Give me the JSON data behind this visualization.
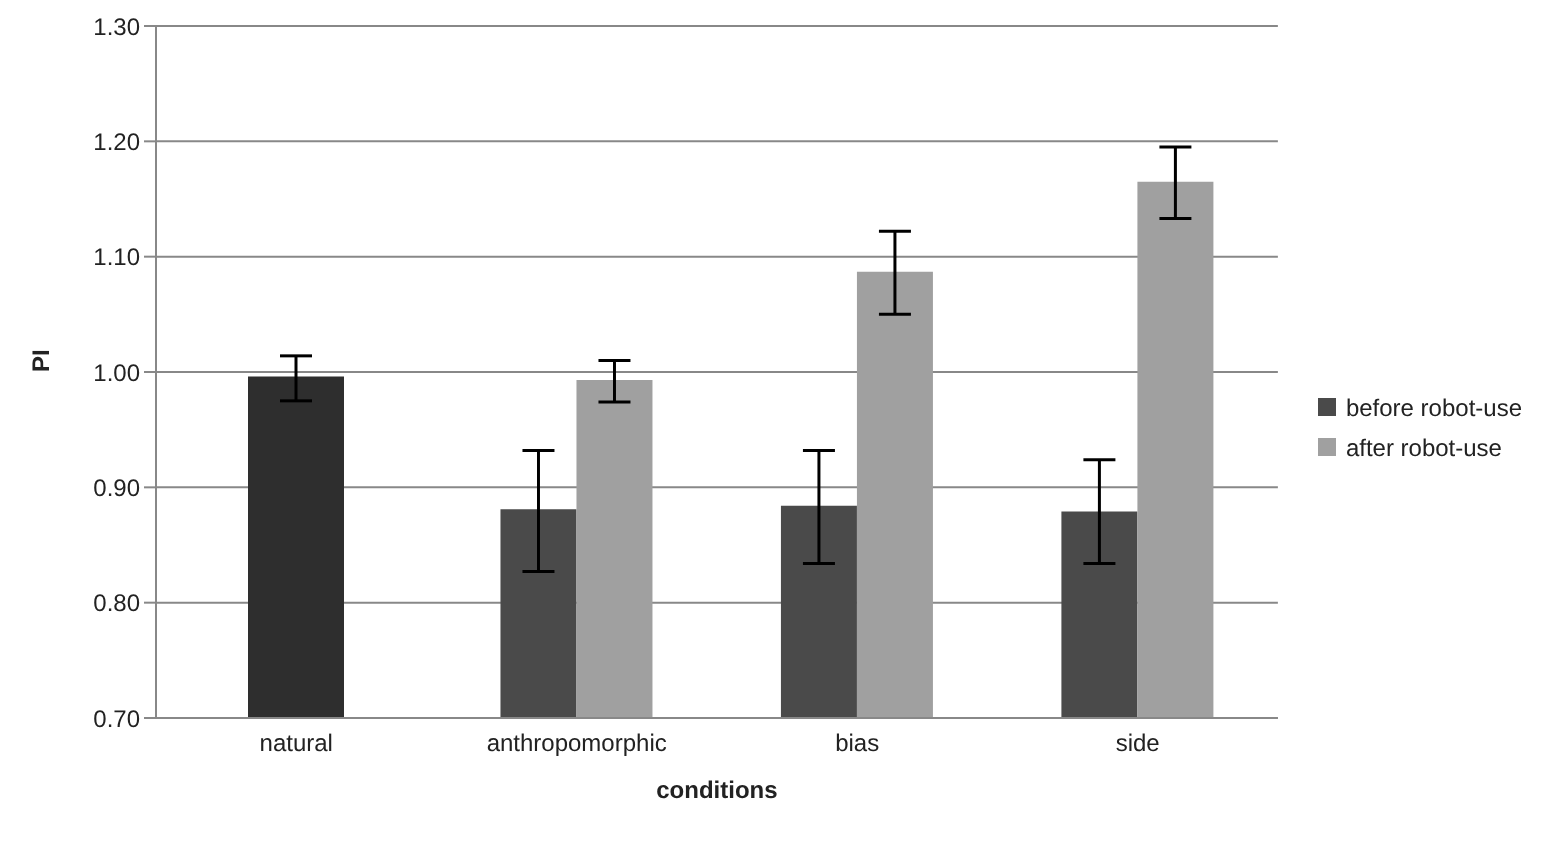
{
  "chart_data": {
    "type": "bar",
    "xlabel": "conditions",
    "ylabel": "PI",
    "categories": [
      "natural",
      "anthropomorphic",
      "bias",
      "side"
    ],
    "series": [
      {
        "color": "#2e2e2e",
        "values": [
          0.996,
          null,
          null,
          null
        ],
        "errors": [
          [
            0.975,
            1.014
          ],
          null,
          null,
          null
        ]
      },
      {
        "name": "before robot-use",
        "color": "#4a4a4a",
        "values": [
          null,
          0.881,
          0.884,
          0.879
        ],
        "errors": [
          null,
          [
            0.827,
            0.932
          ],
          [
            0.834,
            0.932
          ],
          [
            0.834,
            0.924
          ]
        ]
      },
      {
        "name": "after robot-use",
        "color": "#a0a0a0",
        "values": [
          null,
          0.993,
          1.087,
          1.165
        ],
        "errors": [
          null,
          [
            0.974,
            1.01
          ],
          [
            1.05,
            1.122
          ],
          [
            1.133,
            1.195
          ]
        ]
      }
    ],
    "ylim": [
      0.7,
      1.3
    ],
    "yticks": [
      {
        "value": 0.7,
        "label": "0.70"
      },
      {
        "value": 0.8,
        "label": "0.80"
      },
      {
        "value": 0.9,
        "label": "0.90"
      },
      {
        "value": 1.0,
        "label": "1.00"
      },
      {
        "value": 1.1,
        "label": "1.10"
      },
      {
        "value": 1.2,
        "label": "1.20"
      },
      {
        "value": 1.3,
        "label": "1.30"
      }
    ],
    "grid": "y",
    "legend": "right"
  }
}
